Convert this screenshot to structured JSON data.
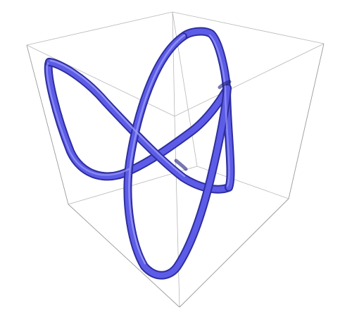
{
  "figure": {
    "title": "",
    "kind": "3D space curve (tube) inside a bounding box",
    "colors": {
      "tube": "#5a5ae6",
      "tube_shadow": "#2e2e9e",
      "tube_highlight": "#8c8cf5",
      "box": "#b0b0b0"
    }
  }
}
